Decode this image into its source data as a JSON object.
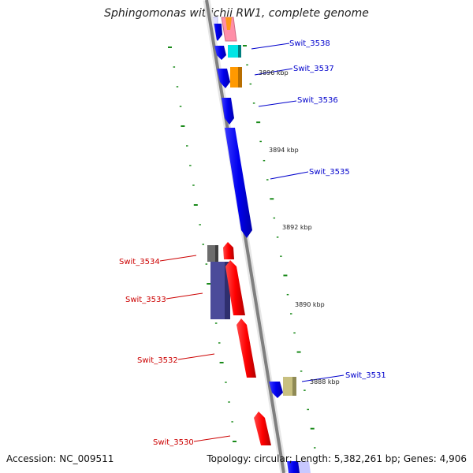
{
  "title": "Sphingomonas wittichii RW1, complete genome",
  "accession_label": "Accession: NC_009511",
  "summary_label": "Topology: circular; Length: 5,382,261 bp; Genes: 4,906",
  "colors": {
    "forward_label": "#0000cc",
    "reverse_label": "#cc0000",
    "backbone": "#808080",
    "tick": "#1a8a1a"
  },
  "kbp_marks": [
    {
      "label": "3896 kbp",
      "kbp": 3896
    },
    {
      "label": "3894 kbp",
      "kbp": 3894
    },
    {
      "label": "3892 kbp",
      "kbp": 3892
    },
    {
      "label": "3890 kbp",
      "kbp": 3890
    },
    {
      "label": "3888 kbp",
      "kbp": 3888
    }
  ],
  "forward_genes": [
    {
      "name": "Swit_3538"
    },
    {
      "name": "Swit_3537"
    },
    {
      "name": "Swit_3536"
    },
    {
      "name": "Swit_3535"
    },
    {
      "name": "Swit_3531"
    }
  ],
  "reverse_genes": [
    {
      "name": "Swit_3534"
    },
    {
      "name": "Swit_3533"
    },
    {
      "name": "Swit_3532"
    },
    {
      "name": "Swit_3530"
    }
  ]
}
